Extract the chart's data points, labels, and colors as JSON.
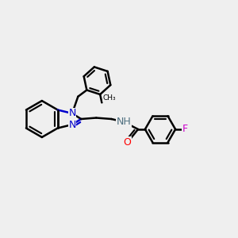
{
  "background_color": "#efefef",
  "bond_color": "#000000",
  "bond_width": 1.8,
  "atom_colors": {
    "N": "#0000cc",
    "O": "#ff0000",
    "F": "#cc00cc",
    "H": "#507080",
    "C": "#000000"
  },
  "font_size": 8.5,
  "fig_size": [
    3.0,
    3.0
  ],
  "dpi": 100,
  "xlim": [
    0,
    10
  ],
  "ylim": [
    0,
    10
  ]
}
